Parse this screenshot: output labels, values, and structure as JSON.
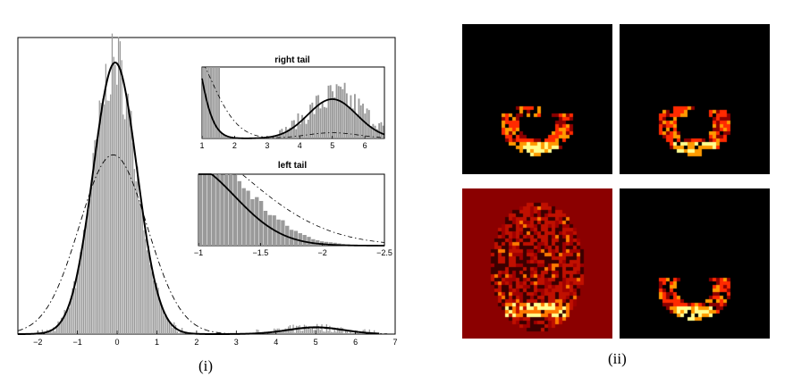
{
  "captions": {
    "left": "(i)",
    "right": "(ii)"
  },
  "chart_data": [
    {
      "type": "histogram",
      "x_ticks": [
        "−2",
        "−1",
        "0",
        "1",
        "2",
        "3",
        "4",
        "5",
        "6",
        "7"
      ],
      "xlim": [
        -2.5,
        7
      ],
      "series_styles": {
        "histogram": "#9a9a9a",
        "fit_solid": "#000000",
        "fit_dashdot": "#000000"
      },
      "null_component": {
        "center": -0.05,
        "sd": 0.55
      },
      "alt_component": {
        "center": 5.0,
        "sd": 0.7,
        "weight": 0.025
      },
      "dashdot_component": {
        "center": -0.1,
        "sd": 0.85
      }
    },
    {
      "type": "histogram",
      "title": "right tail",
      "x_ticks": [
        "1",
        "2",
        "3",
        "4",
        "5",
        "6"
      ],
      "xlim": [
        1,
        6.6
      ]
    },
    {
      "type": "histogram",
      "title": "left tail",
      "x_ticks": [
        "−1",
        "−1.5",
        "−2",
        "−2.5"
      ],
      "xlim": [
        -1,
        -2.5
      ]
    }
  ],
  "heatmaps": [
    {
      "background": "#000000",
      "hot": [
        "#8b0000",
        "#ff2a00",
        "#ff9a00",
        "#ffff90"
      ]
    },
    {
      "background": "#000000",
      "hot": [
        "#8b0000",
        "#ff2a00",
        "#ff9a00",
        "#ffff90"
      ]
    },
    {
      "background": "#8b0000",
      "hot": [
        "#3a0000",
        "#c01000",
        "#ff7a00",
        "#ffff90"
      ]
    },
    {
      "background": "#000000",
      "hot": [
        "#8b0000",
        "#ff2a00",
        "#ff9a00",
        "#ffff90"
      ]
    }
  ]
}
